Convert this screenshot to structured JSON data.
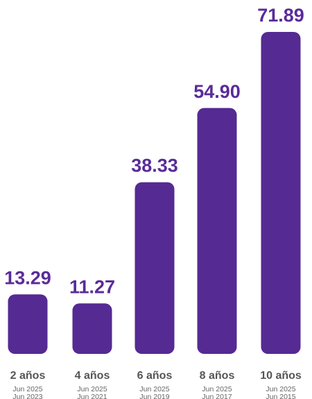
{
  "chart_data": {
    "type": "bar",
    "categories": [
      "2 años",
      "4 años",
      "6 años",
      "8 años",
      "10 años"
    ],
    "date_ranges": [
      [
        "Jun 2025",
        "Jun 2023"
      ],
      [
        "Jun 2025",
        "Jun 2021"
      ],
      [
        "Jun 2025",
        "Jun 2019"
      ],
      [
        "Jun 2025",
        "Jun 2017"
      ],
      [
        "Jun 2025",
        "Jun 2015"
      ]
    ],
    "values": [
      13.29,
      11.27,
      38.33,
      54.9,
      71.89
    ],
    "value_labels": [
      "13.29",
      "11.27",
      "38.33",
      "54.90",
      "71.89"
    ],
    "color": "#552a93"
  }
}
